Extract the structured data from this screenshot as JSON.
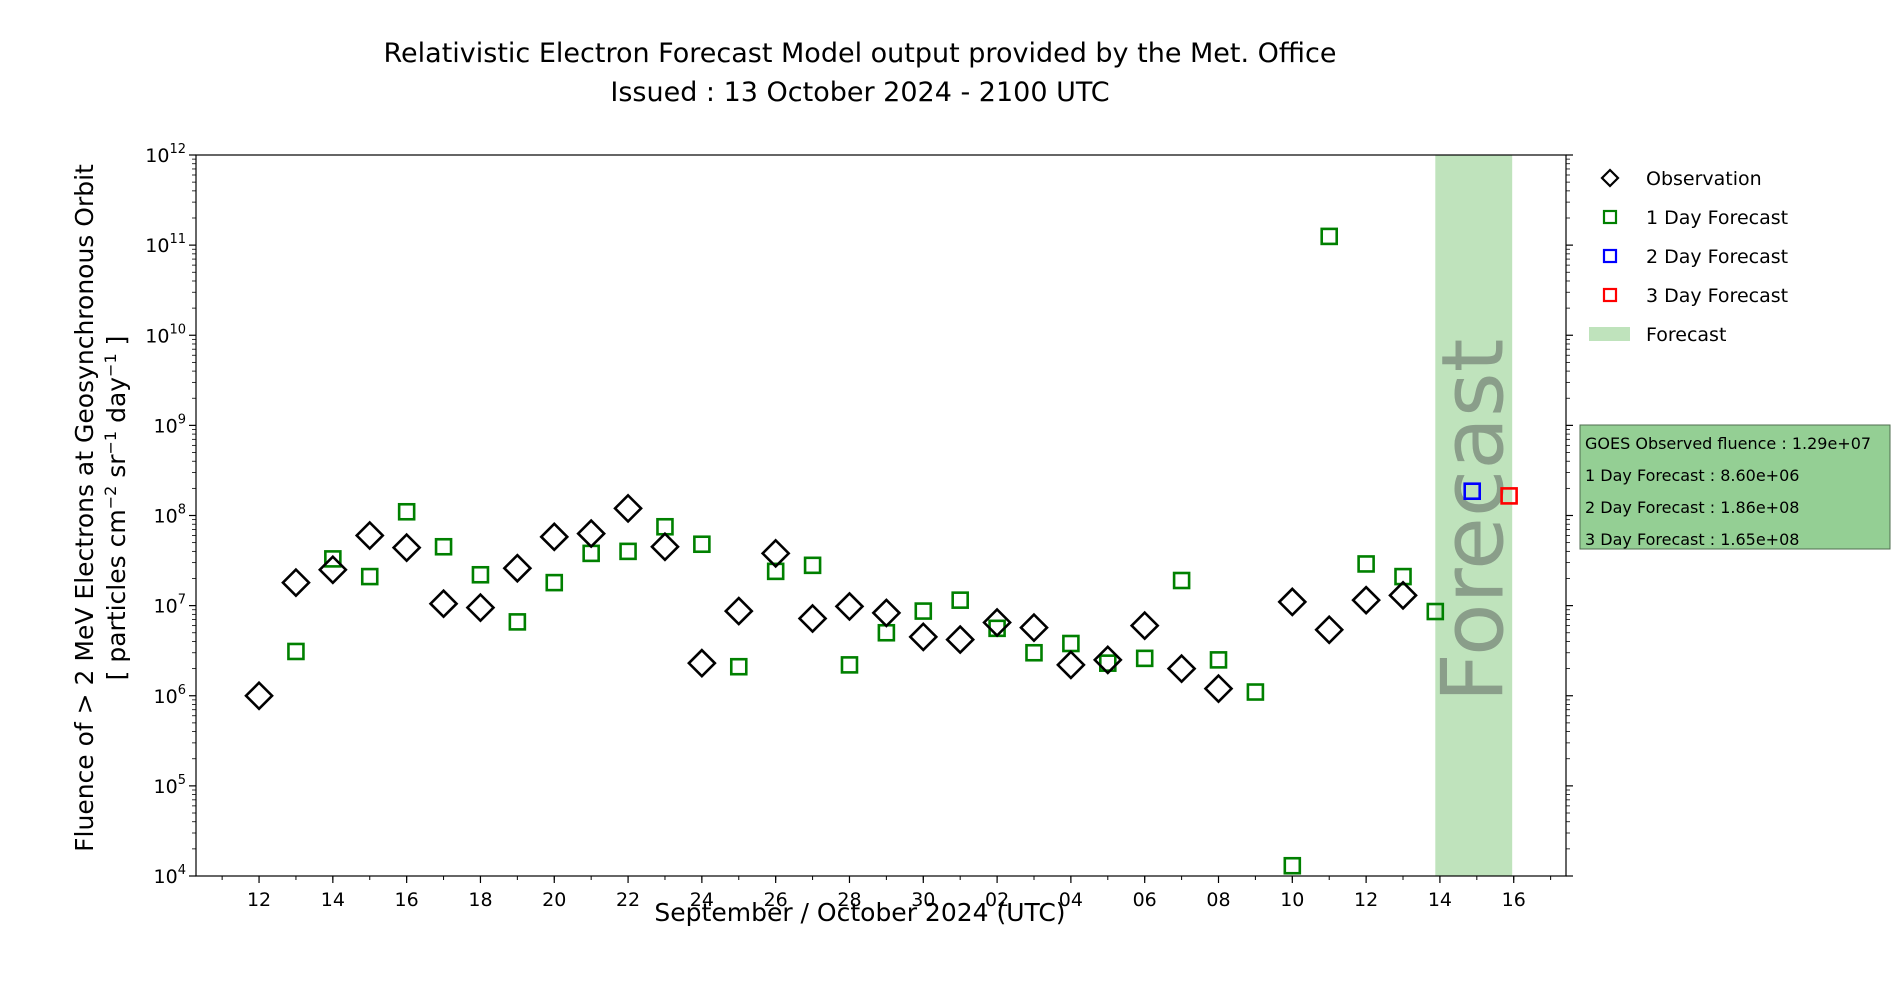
{
  "chart_data": {
    "type": "scatter",
    "title_lines": [
      "Relativistic Electron Forecast Model output provided by the Met. Office",
      "Issued : 13 October 2024 - 2100 UTC"
    ],
    "xlabel": "September / October 2024 (UTC)",
    "ylabel_line1": "Fluence of > 2 MeV Electrons at Geosynchronous Orbit",
    "ylabel_line2_parts": [
      "[ particles cm",
      "−2",
      " sr",
      "−1",
      " day",
      "−1",
      " ]"
    ],
    "y_scale": "log",
    "ylim": [
      10000,
      1000000000000
    ],
    "y_ticks": [
      {
        "value": 10000,
        "base": "10",
        "exp": "4"
      },
      {
        "value": 100000,
        "base": "10",
        "exp": "5"
      },
      {
        "value": 1000000,
        "base": "10",
        "exp": "6"
      },
      {
        "value": 10000000,
        "base": "10",
        "exp": "7"
      },
      {
        "value": 100000000,
        "base": "10",
        "exp": "8"
      },
      {
        "value": 1000000000,
        "base": "10",
        "exp": "9"
      },
      {
        "value": 10000000000,
        "base": "10",
        "exp": "10"
      },
      {
        "value": 100000000000,
        "base": "10",
        "exp": "11"
      },
      {
        "value": 1000000000000,
        "base": "10",
        "exp": "12"
      }
    ],
    "xlim": [
      "2024-09-10T07:00",
      "2024-10-17T10:00"
    ],
    "x_ticks": [
      {
        "date": "2024-09-12",
        "label": "12"
      },
      {
        "date": "2024-09-14",
        "label": "14"
      },
      {
        "date": "2024-09-16",
        "label": "16"
      },
      {
        "date": "2024-09-18",
        "label": "18"
      },
      {
        "date": "2024-09-20",
        "label": "20"
      },
      {
        "date": "2024-09-22",
        "label": "22"
      },
      {
        "date": "2024-09-24",
        "label": "24"
      },
      {
        "date": "2024-09-26",
        "label": "26"
      },
      {
        "date": "2024-09-28",
        "label": "28"
      },
      {
        "date": "2024-09-30",
        "label": "30"
      },
      {
        "date": "2024-10-02",
        "label": "02"
      },
      {
        "date": "2024-10-04",
        "label": "04"
      },
      {
        "date": "2024-10-06",
        "label": "06"
      },
      {
        "date": "2024-10-08",
        "label": "08"
      },
      {
        "date": "2024-10-10",
        "label": "10"
      },
      {
        "date": "2024-10-12",
        "label": "12"
      },
      {
        "date": "2024-10-14",
        "label": "14"
      },
      {
        "date": "2024-10-16",
        "label": "16"
      }
    ],
    "forecast_band": {
      "start": "2024-10-13T21:00",
      "end": "2024-10-15T23:00",
      "label": "Forecast",
      "color": "#bfe3bc"
    },
    "series": [
      {
        "name": "Observation",
        "marker": "diamond",
        "color": "#000000",
        "points": [
          {
            "x": "2024-09-12",
            "y": 1000000
          },
          {
            "x": "2024-09-13",
            "y": 18000000
          },
          {
            "x": "2024-09-14",
            "y": 25000000
          },
          {
            "x": "2024-09-15",
            "y": 60000000
          },
          {
            "x": "2024-09-16",
            "y": 44000000
          },
          {
            "x": "2024-09-17",
            "y": 10500000
          },
          {
            "x": "2024-09-18",
            "y": 9500000
          },
          {
            "x": "2024-09-19",
            "y": 26000000
          },
          {
            "x": "2024-09-20",
            "y": 58000000
          },
          {
            "x": "2024-09-21",
            "y": 63000000
          },
          {
            "x": "2024-09-22",
            "y": 120000000
          },
          {
            "x": "2024-09-23",
            "y": 45000000
          },
          {
            "x": "2024-09-24",
            "y": 2300000
          },
          {
            "x": "2024-09-25",
            "y": 8700000
          },
          {
            "x": "2024-09-26",
            "y": 38000000
          },
          {
            "x": "2024-09-27",
            "y": 7200000
          },
          {
            "x": "2024-09-28",
            "y": 9800000
          },
          {
            "x": "2024-09-29",
            "y": 8300000
          },
          {
            "x": "2024-09-30",
            "y": 4500000
          },
          {
            "x": "2024-10-01",
            "y": 4200000
          },
          {
            "x": "2024-10-02",
            "y": 6500000
          },
          {
            "x": "2024-10-03",
            "y": 5700000
          },
          {
            "x": "2024-10-04",
            "y": 2200000
          },
          {
            "x": "2024-10-05",
            "y": 2500000
          },
          {
            "x": "2024-10-06",
            "y": 6000000
          },
          {
            "x": "2024-10-07",
            "y": 2000000
          },
          {
            "x": "2024-10-08",
            "y": 1200000
          },
          {
            "x": "2024-10-10",
            "y": 11000000
          },
          {
            "x": "2024-10-11",
            "y": 5400000
          },
          {
            "x": "2024-10-12",
            "y": 11500000
          },
          {
            "x": "2024-10-13",
            "y": 13000000
          }
        ]
      },
      {
        "name": "1 Day Forecast",
        "marker": "square",
        "color": "#008000",
        "points": [
          {
            "x": "2024-09-13",
            "y": 3100000
          },
          {
            "x": "2024-09-14",
            "y": 33000000
          },
          {
            "x": "2024-09-15",
            "y": 21000000
          },
          {
            "x": "2024-09-16",
            "y": 110000000
          },
          {
            "x": "2024-09-17",
            "y": 45000000
          },
          {
            "x": "2024-09-18",
            "y": 22000000
          },
          {
            "x": "2024-09-19",
            "y": 6600000
          },
          {
            "x": "2024-09-20",
            "y": 18000000
          },
          {
            "x": "2024-09-21",
            "y": 38000000
          },
          {
            "x": "2024-09-22",
            "y": 40000000
          },
          {
            "x": "2024-09-23",
            "y": 75000000
          },
          {
            "x": "2024-09-24",
            "y": 48000000
          },
          {
            "x": "2024-09-25",
            "y": 2100000
          },
          {
            "x": "2024-09-26",
            "y": 24000000
          },
          {
            "x": "2024-09-27",
            "y": 28000000
          },
          {
            "x": "2024-09-28",
            "y": 2200000
          },
          {
            "x": "2024-09-29",
            "y": 5000000
          },
          {
            "x": "2024-09-30",
            "y": 8700000
          },
          {
            "x": "2024-10-01",
            "y": 11500000
          },
          {
            "x": "2024-10-02",
            "y": 5600000
          },
          {
            "x": "2024-10-03",
            "y": 3000000
          },
          {
            "x": "2024-10-04",
            "y": 3800000
          },
          {
            "x": "2024-10-05",
            "y": 2300000
          },
          {
            "x": "2024-10-06",
            "y": 2600000
          },
          {
            "x": "2024-10-07",
            "y": 19000000
          },
          {
            "x": "2024-10-08",
            "y": 2500000
          },
          {
            "x": "2024-10-09",
            "y": 1100000
          },
          {
            "x": "2024-10-10",
            "y": 13000
          },
          {
            "x": "2024-10-11",
            "y": 125000000000
          },
          {
            "x": "2024-10-12",
            "y": 29000000
          },
          {
            "x": "2024-10-13",
            "y": 21000000
          },
          {
            "x": "2024-10-13T21:00",
            "y": 8600000
          }
        ]
      },
      {
        "name": "2 Day Forecast",
        "marker": "square",
        "color": "#0000ff",
        "points": [
          {
            "x": "2024-10-14T21:00",
            "y": 186000000
          }
        ]
      },
      {
        "name": "3 Day Forecast",
        "marker": "square",
        "color": "#ff0000",
        "points": [
          {
            "x": "2024-10-15T21:00",
            "y": 165000000
          }
        ]
      }
    ],
    "legend": {
      "position": "right, outside plot (top)",
      "entries": [
        {
          "label": "Observation",
          "marker": "diamond",
          "color": "#000000"
        },
        {
          "label": "1 Day Forecast",
          "marker": "square",
          "color": "#008000"
        },
        {
          "label": "2 Day Forecast",
          "marker": "square",
          "color": "#0000ff"
        },
        {
          "label": "3 Day Forecast",
          "marker": "square",
          "color": "#ff0000"
        },
        {
          "label": "Forecast",
          "marker": "patch",
          "color": "#bfe3bc"
        }
      ]
    },
    "info_box": {
      "background": "#94cf94",
      "lines": [
        "GOES Observed fluence : 1.29e+07",
        "1 Day Forecast : 8.60e+06",
        "2 Day Forecast : 1.86e+08",
        "3 Day Forecast : 1.65e+08"
      ]
    },
    "grid": false
  }
}
